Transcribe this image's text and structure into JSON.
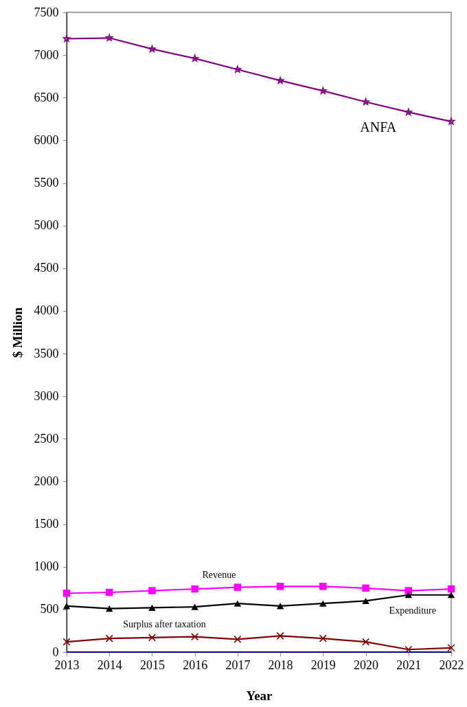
{
  "chart_data": {
    "type": "line",
    "xlabel": "Year",
    "ylabel": "$ Million",
    "categories": [
      "2013",
      "2014",
      "2015",
      "2016",
      "2017",
      "2018",
      "2019",
      "2020",
      "2021",
      "2022"
    ],
    "series": [
      {
        "name": "ANFA",
        "color": "#800080",
        "marker": "star",
        "values": [
          7190,
          7200,
          7070,
          6960,
          6830,
          6700,
          6580,
          6450,
          6330,
          6220
        ]
      },
      {
        "name": "Revenue",
        "color": "#ff00ff",
        "marker": "square",
        "values": [
          690,
          700,
          720,
          740,
          760,
          770,
          770,
          750,
          720,
          740
        ]
      },
      {
        "name": "Expenditure",
        "color": "#000000",
        "marker": "triangle",
        "values": [
          540,
          510,
          520,
          530,
          570,
          540,
          570,
          600,
          670,
          670
        ]
      },
      {
        "name": "Surplus after taxation",
        "color": "#800000",
        "marker": "cross",
        "values": [
          120,
          160,
          170,
          180,
          150,
          190,
          160,
          120,
          30,
          50
        ]
      },
      {
        "color": "#000080",
        "marker": "none",
        "values": [
          0,
          0,
          0,
          0,
          0,
          0,
          0,
          0,
          0,
          0
        ]
      }
    ],
    "ylim": [
      0,
      7500
    ],
    "yticks": [
      0,
      500,
      1000,
      1500,
      2000,
      2500,
      3000,
      3500,
      4000,
      4500,
      5000,
      5500,
      6000,
      6500,
      7000,
      7500
    ],
    "grid": false
  }
}
